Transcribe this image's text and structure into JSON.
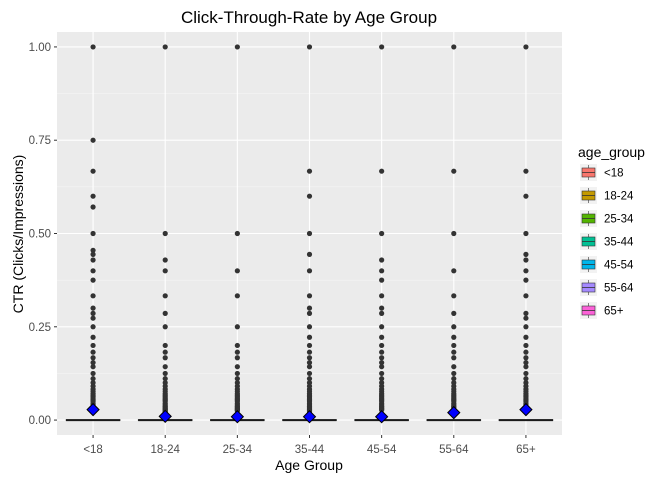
{
  "chart_data": {
    "type": "box",
    "title": "Click-Through-Rate by Age Group",
    "xlabel": "Age Group",
    "ylabel": "CTR (Clicks/Impressions)",
    "ylim": [
      -0.04,
      1.04
    ],
    "yticks": [
      "0.00",
      "0.25",
      "0.50",
      "0.75",
      "1.00"
    ],
    "ytick_values": [
      0,
      0.25,
      0.5,
      0.75,
      1.0
    ],
    "categories": [
      "<18",
      "18-24",
      "25-34",
      "35-44",
      "45-54",
      "55-64",
      "65+"
    ],
    "grid": true,
    "legend": {
      "title": "age_group",
      "position": "right",
      "entries": [
        {
          "label": "<18",
          "color": "#F8766D"
        },
        {
          "label": "18-24",
          "color": "#C49A00"
        },
        {
          "label": "25-34",
          "color": "#53B400"
        },
        {
          "label": "35-44",
          "color": "#00C094"
        },
        {
          "label": "45-54",
          "color": "#00B6EB"
        },
        {
          "label": "55-64",
          "color": "#A58AFF"
        },
        {
          "label": "65+",
          "color": "#FB61D7"
        }
      ]
    },
    "boxes": [
      {
        "group": "<18",
        "q1": 0,
        "median": 0,
        "q3": 0,
        "mean": 0.028,
        "outliers": [
          1.0,
          0.75,
          0.667,
          0.6,
          0.571,
          0.5,
          0.455,
          0.444,
          0.429,
          0.4,
          0.375,
          0.333,
          0.3,
          0.286,
          0.273,
          0.25,
          0.222,
          0.2,
          0.182,
          0.167,
          0.154,
          0.143,
          0.125,
          0.111,
          0.1,
          0.091,
          0.083,
          0.077,
          0.071,
          0.067,
          0.063,
          0.059,
          0.056,
          0.053,
          0.05,
          0.045,
          0.042,
          0.038,
          0.036,
          0.033
        ]
      },
      {
        "group": "18-24",
        "q1": 0,
        "median": 0,
        "q3": 0,
        "mean": 0.01,
        "outliers": [
          1.0,
          0.5,
          0.429,
          0.4,
          0.333,
          0.286,
          0.25,
          0.2,
          0.182,
          0.167,
          0.143,
          0.125,
          0.111,
          0.1,
          0.091,
          0.083,
          0.077,
          0.071,
          0.067,
          0.063,
          0.059,
          0.056,
          0.053,
          0.05,
          0.045,
          0.042,
          0.038,
          0.036,
          0.033,
          0.031,
          0.029,
          0.027,
          0.025,
          0.023,
          0.021
        ]
      },
      {
        "group": "25-34",
        "q1": 0,
        "median": 0,
        "q3": 0,
        "mean": 0.009,
        "outliers": [
          1.0,
          0.5,
          0.4,
          0.333,
          0.25,
          0.2,
          0.182,
          0.167,
          0.143,
          0.125,
          0.111,
          0.1,
          0.091,
          0.083,
          0.077,
          0.071,
          0.067,
          0.063,
          0.059,
          0.056,
          0.053,
          0.05,
          0.045,
          0.042,
          0.038,
          0.036,
          0.033,
          0.031,
          0.029,
          0.027,
          0.025
        ]
      },
      {
        "group": "35-44",
        "q1": 0,
        "median": 0,
        "q3": 0,
        "mean": 0.009,
        "outliers": [
          1.0,
          0.667,
          0.6,
          0.5,
          0.444,
          0.4,
          0.333,
          0.3,
          0.286,
          0.25,
          0.222,
          0.2,
          0.182,
          0.167,
          0.154,
          0.143,
          0.125,
          0.111,
          0.1,
          0.091,
          0.083,
          0.077,
          0.071,
          0.067,
          0.063,
          0.059,
          0.056,
          0.053,
          0.05,
          0.045,
          0.042,
          0.038,
          0.036,
          0.033,
          0.031,
          0.029,
          0.027,
          0.025,
          0.023
        ]
      },
      {
        "group": "45-54",
        "q1": 0,
        "median": 0,
        "q3": 0,
        "mean": 0.009,
        "outliers": [
          1.0,
          0.667,
          0.5,
          0.429,
          0.4,
          0.375,
          0.333,
          0.3,
          0.286,
          0.25,
          0.222,
          0.2,
          0.182,
          0.167,
          0.154,
          0.143,
          0.125,
          0.111,
          0.1,
          0.091,
          0.083,
          0.077,
          0.071,
          0.067,
          0.063,
          0.059,
          0.056,
          0.053,
          0.05,
          0.045,
          0.042,
          0.038,
          0.036,
          0.033,
          0.031,
          0.029,
          0.027
        ]
      },
      {
        "group": "55-64",
        "q1": 0,
        "median": 0,
        "q3": 0,
        "mean": 0.02,
        "outliers": [
          1.0,
          0.667,
          0.5,
          0.4,
          0.333,
          0.286,
          0.25,
          0.222,
          0.2,
          0.182,
          0.167,
          0.143,
          0.125,
          0.111,
          0.1,
          0.091,
          0.083,
          0.077,
          0.071,
          0.067,
          0.063,
          0.059,
          0.056,
          0.053,
          0.05,
          0.045,
          0.042,
          0.038,
          0.036,
          0.033
        ]
      },
      {
        "group": "65+",
        "q1": 0,
        "median": 0,
        "q3": 0,
        "mean": 0.028,
        "outliers": [
          1.0,
          0.667,
          0.6,
          0.5,
          0.444,
          0.429,
          0.4,
          0.375,
          0.333,
          0.286,
          0.273,
          0.25,
          0.222,
          0.2,
          0.182,
          0.167,
          0.154,
          0.143,
          0.125,
          0.111,
          0.1,
          0.091,
          0.083,
          0.077,
          0.071,
          0.067,
          0.063,
          0.059,
          0.056,
          0.053,
          0.05,
          0.045,
          0.042,
          0.038,
          0.036,
          0.033
        ]
      }
    ],
    "mean_marker_color": "#0000FF",
    "outlier_color": "#333333"
  }
}
